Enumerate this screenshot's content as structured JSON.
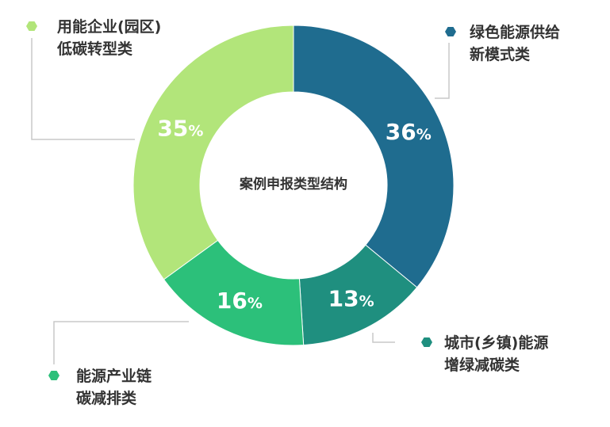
{
  "chart_data": {
    "type": "pie",
    "title": "案例申报类型结构",
    "slices": [
      {
        "label_lines": [
          "绿色能源供给",
          "新模式类"
        ],
        "value": 36,
        "value_text": "36%",
        "color": "#1f6c8f"
      },
      {
        "label_lines": [
          "城市(乡镇)能源",
          "增绿减碳类"
        ],
        "value": 13,
        "value_text": "13%",
        "color": "#1f8f7f"
      },
      {
        "label_lines": [
          "能源产业链",
          "碳减排类"
        ],
        "value": 16,
        "value_text": "16%",
        "color": "#2cc07a"
      },
      {
        "label_lines": [
          "用能企业(园区)",
          "低碳转型类"
        ],
        "value": 35,
        "value_text": "35%",
        "color": "#b2e57a"
      }
    ],
    "connector_color": "#c8c8c8",
    "legend_placement": "around"
  }
}
